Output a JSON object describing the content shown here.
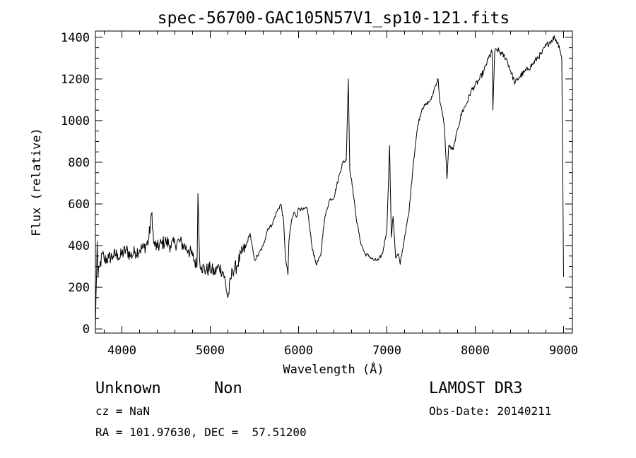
{
  "chart_data": {
    "type": "line",
    "title": "spec-56700-GAC105N57V1_sp10-121.fits",
    "xlabel": "Wavelength (Å)",
    "ylabel": "Flux (relative)",
    "xlim": [
      3700,
      9100
    ],
    "ylim": [
      -20,
      1430
    ],
    "x_ticks": [
      4000,
      5000,
      6000,
      7000,
      8000,
      9000
    ],
    "y_ticks": [
      0,
      200,
      400,
      600,
      800,
      1000,
      1200,
      1400
    ],
    "x_tick_labels": [
      "4000",
      "5000",
      "6000",
      "7000",
      "8000",
      "9000"
    ],
    "y_tick_labels": [
      "0",
      "200",
      "400",
      "600",
      "800",
      "1000",
      "1200",
      "1400"
    ],
    "grid": false,
    "series": [
      {
        "x": [
          3700,
          3720,
          3730,
          3750,
          3780,
          3800,
          3850,
          3900,
          3950,
          3970,
          4000,
          4050,
          4100,
          4150,
          4200,
          4250,
          4300,
          4340,
          4360,
          4400,
          4450,
          4500,
          4550,
          4600,
          4650,
          4700,
          4750,
          4800,
          4850,
          4861,
          4880,
          4900,
          4950,
          5000,
          5050,
          5100,
          5150,
          5200,
          5250,
          5300,
          5350,
          5400,
          5450,
          5500,
          5550,
          5600,
          5650,
          5700,
          5750,
          5800,
          5830,
          5850,
          5880,
          5890,
          5920,
          5950,
          5980,
          6000,
          6050,
          6100,
          6150,
          6200,
          6250,
          6280,
          6300,
          6350,
          6400,
          6450,
          6500,
          6540,
          6563,
          6580,
          6600,
          6650,
          6700,
          6750,
          6800,
          6850,
          6900,
          6950,
          7000,
          7030,
          7050,
          7070,
          7100,
          7130,
          7150,
          7200,
          7250,
          7300,
          7350,
          7400,
          7450,
          7500,
          7550,
          7580,
          7600,
          7620,
          7650,
          7680,
          7700,
          7750,
          7800,
          7850,
          7900,
          7950,
          8000,
          8050,
          8100,
          8150,
          8190,
          8200,
          8220,
          8250,
          8300,
          8350,
          8400,
          8450,
          8500,
          8550,
          8600,
          8650,
          8700,
          8750,
          8800,
          8850,
          8900,
          8950,
          8980,
          9000
        ],
        "y": [
          0,
          420,
          250,
          300,
          360,
          330,
          340,
          350,
          360,
          340,
          360,
          380,
          350,
          370,
          380,
          390,
          420,
          560,
          410,
          390,
          410,
          420,
          400,
          410,
          420,
          400,
          380,
          350,
          300,
          650,
          330,
          300,
          280,
          290,
          270,
          300,
          270,
          150,
          280,
          300,
          360,
          390,
          460,
          330,
          360,
          400,
          480,
          500,
          560,
          600,
          520,
          350,
          260,
          420,
          520,
          560,
          540,
          580,
          570,
          580,
          400,
          310,
          350,
          480,
          540,
          620,
          630,
          720,
          800,
          810,
          1200,
          760,
          720,
          540,
          420,
          360,
          350,
          330,
          330,
          360,
          480,
          880,
          440,
          540,
          340,
          360,
          310,
          440,
          560,
          800,
          980,
          1060,
          1080,
          1100,
          1170,
          1200,
          1090,
          1050,
          980,
          720,
          880,
          860,
          960,
          1040,
          1080,
          1140,
          1170,
          1200,
          1240,
          1300,
          1330,
          1050,
          1330,
          1340,
          1320,
          1300,
          1240,
          1180,
          1210,
          1230,
          1250,
          1270,
          1300,
          1320,
          1360,
          1380,
          1400,
          1360,
          1300,
          250
        ]
      }
    ]
  },
  "info": {
    "object_class": "Unknown",
    "subclass": "Non",
    "cz": "cz = NaN",
    "coords": "RA = 101.97630, DEC =  57.51200",
    "survey": "LAMOST DR3",
    "obs_date": "Obs-Date: 20140211"
  }
}
